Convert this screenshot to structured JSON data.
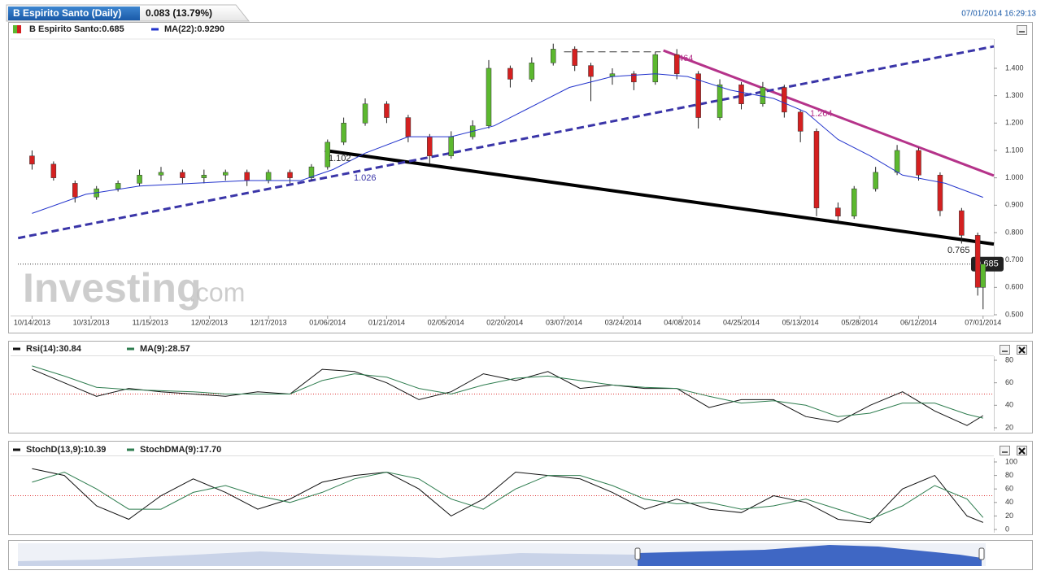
{
  "header": {
    "title": "B Espirito Santo (Daily)",
    "change": "0.083 (13.79%)",
    "timestamp": "07/01/2014 16:29:13",
    "watermark_brand": "Investing",
    "watermark_suffix": ".com"
  },
  "chart_data": [
    {
      "type": "candlestick",
      "name": "B Espirito Santo:0.685",
      "up_color": "#5cb82f",
      "down_color": "#d42020",
      "x": [
        0,
        4,
        8,
        12,
        16,
        20,
        24,
        28,
        32,
        36,
        40,
        44,
        48,
        52,
        55,
        58,
        62,
        66,
        70,
        74,
        78,
        82,
        85,
        89,
        93,
        97,
        101,
        104,
        108,
        112,
        116,
        120,
        124,
        128,
        132,
        136,
        140,
        143,
        146,
        150,
        153,
        157,
        161,
        165,
        169,
        173,
        176,
        177
      ],
      "open": [
        1.08,
        1.05,
        0.98,
        0.93,
        0.96,
        0.98,
        1.01,
        1.02,
        1.0,
        1.01,
        1.02,
        0.99,
        1.02,
        1.0,
        1.04,
        1.13,
        1.2,
        1.27,
        1.22,
        1.15,
        1.08,
        1.15,
        1.19,
        1.4,
        1.36,
        1.42,
        1.47,
        1.41,
        1.37,
        1.38,
        1.35,
        1.45,
        1.38,
        1.22,
        1.34,
        1.27,
        1.33,
        1.24,
        1.17,
        0.89,
        0.86,
        0.96,
        1.02,
        1.1,
        1.01,
        0.88,
        0.79,
        0.6
      ],
      "high": [
        1.1,
        1.06,
        0.99,
        0.97,
        0.99,
        1.03,
        1.04,
        1.03,
        1.03,
        1.03,
        1.03,
        1.03,
        1.03,
        1.05,
        1.14,
        1.22,
        1.29,
        1.28,
        1.23,
        1.16,
        1.17,
        1.21,
        1.43,
        1.41,
        1.44,
        1.49,
        1.48,
        1.42,
        1.4,
        1.39,
        1.46,
        1.47,
        1.39,
        1.36,
        1.35,
        1.35,
        1.34,
        1.25,
        1.18,
        0.91,
        0.97,
        1.04,
        1.12,
        1.11,
        1.02,
        0.89,
        0.8,
        0.7
      ],
      "low": [
        1.03,
        0.99,
        0.91,
        0.92,
        0.95,
        0.97,
        0.99,
        0.98,
        0.98,
        0.99,
        0.97,
        0.98,
        0.98,
        0.99,
        1.03,
        1.12,
        1.19,
        1.2,
        1.13,
        1.05,
        1.07,
        1.14,
        1.18,
        1.33,
        1.35,
        1.41,
        1.39,
        1.28,
        1.34,
        1.32,
        1.34,
        1.36,
        1.18,
        1.21,
        1.25,
        1.26,
        1.22,
        1.13,
        0.86,
        0.84,
        0.85,
        0.95,
        1.01,
        0.99,
        0.86,
        0.76,
        0.57,
        0.52
      ],
      "close": [
        1.05,
        1.0,
        0.93,
        0.96,
        0.98,
        1.01,
        1.02,
        1.0,
        1.01,
        1.02,
        0.99,
        1.02,
        1.0,
        1.04,
        1.13,
        1.2,
        1.27,
        1.22,
        1.15,
        1.08,
        1.15,
        1.19,
        1.4,
        1.36,
        1.42,
        1.47,
        1.41,
        1.37,
        1.38,
        1.35,
        1.45,
        1.38,
        1.22,
        1.34,
        1.27,
        1.33,
        1.24,
        1.17,
        0.89,
        0.86,
        0.96,
        1.02,
        1.1,
        1.01,
        0.88,
        0.79,
        0.6,
        0.685
      ],
      "series": [
        {
          "name": "MA(22):0.9290",
          "color": "#2233cc",
          "x": [
            0,
            10,
            20,
            30,
            40,
            50,
            56,
            62,
            70,
            78,
            86,
            92,
            100,
            108,
            116,
            122,
            130,
            138,
            144,
            150,
            156,
            162,
            170,
            177
          ],
          "values": [
            0.87,
            0.94,
            0.97,
            0.98,
            0.99,
            0.99,
            1.03,
            1.09,
            1.15,
            1.15,
            1.19,
            1.25,
            1.33,
            1.37,
            1.38,
            1.37,
            1.32,
            1.29,
            1.24,
            1.14,
            1.08,
            1.01,
            0.98,
            0.929
          ]
        }
      ],
      "trendlines": [
        {
          "x": [
            54.5,
            179
          ],
          "y": [
            1.1,
            0.758
          ],
          "color": "#000000",
          "width": 4,
          "dashed": false
        },
        {
          "x": [
            117.5,
            179
          ],
          "y": [
            1.465,
            1.008
          ],
          "color": "#b5338a",
          "width": 3,
          "dashed": false
        },
        {
          "x": [
            -2.6,
            179
          ],
          "y": [
            0.78,
            1.48
          ],
          "color": "#3a35a8",
          "width": 3,
          "dashed": true
        },
        {
          "x": [
            99,
            117
          ],
          "y": [
            1.46,
            1.46
          ],
          "color": "#333333",
          "width": 1,
          "dashed": true
        }
      ],
      "annotations": [
        "1.102",
        "1.026",
        "1.264",
        "464",
        "0.765"
      ],
      "last_price": {
        "value": 0.685,
        "label": "0.685"
      },
      "xlim": [
        -4,
        179
      ],
      "xticks": [
        {
          "value": 0,
          "label": "10/14/2013"
        },
        {
          "value": 11,
          "label": "10/31/2013"
        },
        {
          "value": 22,
          "label": "11/15/2013"
        },
        {
          "value": 33,
          "label": "12/02/2013"
        },
        {
          "value": 44,
          "label": "12/17/2013"
        },
        {
          "value": 55,
          "label": "01/06/2014"
        },
        {
          "value": 66,
          "label": "01/21/2014"
        },
        {
          "value": 77,
          "label": "02/05/2014"
        },
        {
          "value": 88,
          "label": "02/20/2014"
        },
        {
          "value": 99,
          "label": "03/07/2014"
        },
        {
          "value": 110,
          "label": "03/24/2014"
        },
        {
          "value": 121,
          "label": "04/08/2014"
        },
        {
          "value": 132,
          "label": "04/25/2014"
        },
        {
          "value": 143,
          "label": "05/13/2014"
        },
        {
          "value": 154,
          "label": "05/28/2014"
        },
        {
          "value": 165,
          "label": "06/12/2014"
        },
        {
          "value": 177,
          "label": "07/01/2014"
        }
      ],
      "ylim": [
        0.5,
        1.5
      ],
      "yticks": [
        {
          "value": 0.5,
          "label": "0.500"
        },
        {
          "value": 0.6,
          "label": "0.600"
        },
        {
          "value": 0.7,
          "label": "0.700"
        },
        {
          "value": 0.8,
          "label": "0.800"
        },
        {
          "value": 0.9,
          "label": "0.900"
        },
        {
          "value": 1.0,
          "label": "1.000"
        },
        {
          "value": 1.1,
          "label": "1.100"
        },
        {
          "value": 1.2,
          "label": "1.200"
        },
        {
          "value": 1.3,
          "label": "1.300"
        },
        {
          "value": 1.4,
          "label": "1.400"
        }
      ]
    },
    {
      "type": "line",
      "xlim": [
        -4,
        179
      ],
      "ylim": [
        20,
        80
      ],
      "yticks": [
        20,
        40,
        60,
        80
      ],
      "reference_line": 50,
      "x": [
        0,
        6,
        12,
        18,
        24,
        30,
        36,
        42,
        48,
        54,
        60,
        66,
        72,
        78,
        84,
        90,
        96,
        102,
        108,
        114,
        120,
        126,
        132,
        138,
        144,
        150,
        156,
        162,
        168,
        174,
        177
      ],
      "series": [
        {
          "name": "Rsi(14):30.84",
          "color": "#111111",
          "values": [
            72,
            60,
            48,
            55,
            52,
            50,
            48,
            52,
            50,
            72,
            70,
            60,
            45,
            52,
            68,
            62,
            70,
            55,
            58,
            55,
            55,
            38,
            45,
            45,
            30,
            25,
            40,
            52,
            35,
            22,
            30.84
          ]
        },
        {
          "name": "MA(9):28.57",
          "color": "#2e7d4f",
          "values": [
            75,
            66,
            56,
            54,
            53,
            52,
            50,
            50,
            50,
            62,
            68,
            65,
            55,
            50,
            58,
            64,
            66,
            62,
            58,
            56,
            55,
            48,
            42,
            44,
            40,
            30,
            33,
            42,
            42,
            32,
            28.57
          ]
        }
      ]
    },
    {
      "type": "line",
      "xlim": [
        -4,
        179
      ],
      "ylim": [
        0,
        100
      ],
      "yticks": [
        0,
        20,
        40,
        60,
        80,
        100
      ],
      "reference_line": 50,
      "x": [
        0,
        6,
        12,
        18,
        24,
        30,
        36,
        42,
        48,
        54,
        60,
        66,
        72,
        78,
        84,
        90,
        96,
        102,
        108,
        114,
        120,
        126,
        132,
        138,
        144,
        150,
        156,
        162,
        168,
        174,
        177
      ],
      "series": [
        {
          "name": "StochD(13,9):10.39",
          "color": "#111111",
          "values": [
            90,
            80,
            35,
            15,
            50,
            75,
            55,
            30,
            45,
            70,
            80,
            85,
            60,
            20,
            45,
            85,
            80,
            75,
            55,
            30,
            45,
            30,
            25,
            50,
            40,
            15,
            10,
            60,
            80,
            20,
            10.39
          ]
        },
        {
          "name": "StochDMA(9):17.70",
          "color": "#2e7d4f",
          "values": [
            70,
            85,
            60,
            30,
            30,
            55,
            65,
            50,
            40,
            55,
            75,
            85,
            75,
            45,
            30,
            60,
            80,
            80,
            65,
            45,
            38,
            40,
            30,
            35,
            45,
            30,
            15,
            35,
            65,
            45,
            17.7
          ]
        }
      ]
    }
  ]
}
